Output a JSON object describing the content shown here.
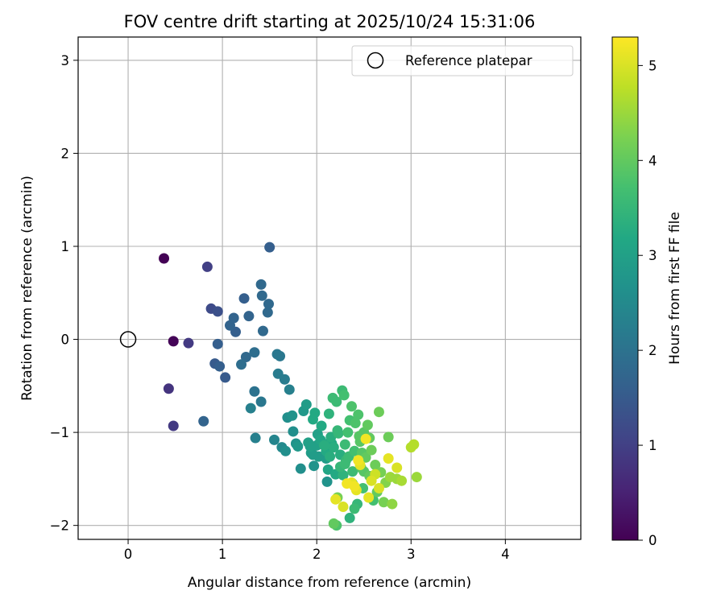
{
  "chart_data": {
    "type": "scatter",
    "title": "FOV centre drift starting at 2025/10/24 15:31:06",
    "xlabel": "Angular distance from reference (arcmin)",
    "ylabel": "Rotation from reference (arcmin)",
    "xlim": [
      -0.53,
      4.8
    ],
    "ylim": [
      -2.15,
      3.25
    ],
    "xticks": [
      0,
      1,
      2,
      3,
      4
    ],
    "yticks": [
      -2,
      -1,
      0,
      1,
      2,
      3
    ],
    "xtick_labels": [
      "0",
      "1",
      "2",
      "3",
      "4"
    ],
    "ytick_labels": [
      "−2",
      "−1",
      "0",
      "1",
      "2",
      "3"
    ],
    "grid": true,
    "legend": {
      "position": "top-right",
      "label": "Reference platepar"
    },
    "reference_point": {
      "x": 0,
      "y": 0
    },
    "colorbar": {
      "label": "Hours from first FF file",
      "range": [
        0,
        5.3
      ],
      "ticks": [
        0,
        1,
        2,
        3,
        4,
        5
      ],
      "tick_labels": [
        "0",
        "1",
        "2",
        "3",
        "4",
        "5"
      ],
      "colormap": "viridis"
    },
    "points": [
      [
        0.38,
        0.87,
        0.02
      ],
      [
        0.48,
        -0.02,
        0.05
      ],
      [
        0.43,
        -0.53,
        0.8
      ],
      [
        0.48,
        -0.93,
        0.9
      ],
      [
        0.64,
        -0.04,
        0.9
      ],
      [
        0.84,
        0.78,
        1.0
      ],
      [
        0.88,
        0.33,
        1.2
      ],
      [
        0.95,
        0.3,
        1.3
      ],
      [
        0.95,
        -0.05,
        1.6
      ],
      [
        0.92,
        -0.26,
        1.5
      ],
      [
        0.97,
        -0.29,
        1.6
      ],
      [
        1.03,
        -0.41,
        1.5
      ],
      [
        1.08,
        0.15,
        1.7
      ],
      [
        1.12,
        0.23,
        1.7
      ],
      [
        1.14,
        0.08,
        1.6
      ],
      [
        1.23,
        0.44,
        1.6
      ],
      [
        1.28,
        0.25,
        1.7
      ],
      [
        1.2,
        -0.27,
        1.9
      ],
      [
        1.25,
        -0.19,
        1.8
      ],
      [
        1.34,
        -0.14,
        1.9
      ],
      [
        1.41,
        0.59,
        1.8
      ],
      [
        1.42,
        0.47,
        1.8
      ],
      [
        1.43,
        0.09,
        1.8
      ],
      [
        1.48,
        0.29,
        1.8
      ],
      [
        1.49,
        0.38,
        1.8
      ],
      [
        1.5,
        0.99,
        1.6
      ],
      [
        1.34,
        -0.56,
        2.0
      ],
      [
        1.3,
        -0.74,
        2.3
      ],
      [
        1.41,
        -0.67,
        2.1
      ],
      [
        0.8,
        -0.88,
        1.7
      ],
      [
        1.35,
        -1.06,
        2.3
      ],
      [
        1.58,
        -0.16,
        2.1
      ],
      [
        1.61,
        -0.18,
        2.1
      ],
      [
        1.59,
        -0.37,
        2.2
      ],
      [
        1.66,
        -0.43,
        2.2
      ],
      [
        1.71,
        -0.54,
        2.3
      ],
      [
        1.55,
        -1.08,
        2.4
      ],
      [
        1.63,
        -1.16,
        2.5
      ],
      [
        1.67,
        -1.2,
        2.6
      ],
      [
        1.69,
        -0.84,
        2.6
      ],
      [
        1.74,
        -0.82,
        2.7
      ],
      [
        1.75,
        -0.99,
        2.6
      ],
      [
        1.78,
        -1.12,
        2.7
      ],
      [
        1.8,
        -1.15,
        2.8
      ],
      [
        1.83,
        -1.39,
        2.6
      ],
      [
        1.86,
        -0.77,
        2.8
      ],
      [
        1.89,
        -0.7,
        2.9
      ],
      [
        1.91,
        -1.11,
        3.0
      ],
      [
        1.94,
        -1.22,
        2.9
      ],
      [
        1.96,
        -0.86,
        3.2
      ],
      [
        1.98,
        -0.79,
        3.2
      ],
      [
        1.97,
        -1.36,
        2.7
      ],
      [
        2.01,
        -1.02,
        3.0
      ],
      [
        2.02,
        -1.26,
        2.9
      ],
      [
        2.05,
        -0.93,
        3.2
      ],
      [
        2.07,
        -1.12,
        3.1
      ],
      [
        2.1,
        -1.28,
        2.9
      ],
      [
        2.11,
        -1.53,
        2.7
      ],
      [
        2.12,
        -1.4,
        3.1
      ],
      [
        2.13,
        -0.8,
        3.4
      ],
      [
        2.15,
        -1.05,
        3.3
      ],
      [
        2.17,
        -0.63,
        3.6
      ],
      [
        2.18,
        -1.16,
        3.3
      ],
      [
        2.2,
        -1.45,
        3.2
      ],
      [
        2.21,
        -0.67,
        3.6
      ],
      [
        2.23,
        -1.01,
        3.5
      ],
      [
        2.25,
        -1.24,
        3.3
      ],
      [
        2.27,
        -0.55,
        3.6
      ],
      [
        2.28,
        -1.46,
        3.4
      ],
      [
        2.3,
        -1.13,
        3.6
      ],
      [
        2.31,
        -1.3,
        3.5
      ],
      [
        2.33,
        -1.0,
        3.7
      ],
      [
        2.35,
        -1.92,
        3.4
      ],
      [
        2.37,
        -0.72,
        3.8
      ],
      [
        2.38,
        -1.55,
        3.6
      ],
      [
        2.4,
        -1.2,
        3.7
      ],
      [
        2.41,
        -0.9,
        3.8
      ],
      [
        2.43,
        -1.77,
        3.5
      ],
      [
        2.44,
        -0.81,
        3.8
      ],
      [
        2.46,
        -1.1,
        3.9
      ],
      [
        2.47,
        -1.38,
        3.8
      ],
      [
        2.49,
        -1.6,
        3.7
      ],
      [
        2.5,
        -1.0,
        3.9
      ],
      [
        2.52,
        -1.27,
        4.0
      ],
      [
        2.54,
        -0.92,
        4.0
      ],
      [
        2.56,
        -1.47,
        4.0
      ],
      [
        2.58,
        -1.19,
        4.1
      ],
      [
        2.6,
        -1.73,
        3.7
      ],
      [
        2.62,
        -1.35,
        4.1
      ],
      [
        2.64,
        -1.64,
        4.0
      ],
      [
        2.66,
        -0.78,
        4.1
      ],
      [
        2.68,
        -1.43,
        4.2
      ],
      [
        2.71,
        -1.75,
        4.2
      ],
      [
        2.73,
        -1.54,
        4.3
      ],
      [
        2.76,
        -1.05,
        4.1
      ],
      [
        2.78,
        -1.48,
        4.5
      ],
      [
        2.8,
        -1.77,
        4.4
      ],
      [
        2.85,
        -1.5,
        4.5
      ],
      [
        2.9,
        -1.52,
        4.6
      ],
      [
        3.0,
        -1.16,
        4.7
      ],
      [
        3.03,
        -1.13,
        4.7
      ],
      [
        3.06,
        -1.48,
        4.5
      ],
      [
        2.18,
        -1.98,
        4.0
      ],
      [
        2.21,
        -2.0,
        3.8
      ],
      [
        2.29,
        -0.6,
        3.7
      ],
      [
        2.35,
        -0.87,
        3.7
      ],
      [
        2.4,
        -1.82,
        3.6
      ],
      [
        2.22,
        -1.7,
        4.2
      ],
      [
        2.2,
        -1.72,
        5.1
      ],
      [
        2.28,
        -1.8,
        5.0
      ],
      [
        2.32,
        -1.55,
        5.2
      ],
      [
        2.37,
        -1.54,
        5.1
      ],
      [
        2.4,
        -1.58,
        5.2
      ],
      [
        2.42,
        -1.62,
        5.1
      ],
      [
        2.44,
        -1.3,
        5.2
      ],
      [
        2.46,
        -1.35,
        5.1
      ],
      [
        2.52,
        -1.07,
        5.2
      ],
      [
        2.55,
        -1.7,
        5.1
      ],
      [
        2.58,
        -1.52,
        5.0
      ],
      [
        2.62,
        -1.45,
        4.9
      ],
      [
        2.66,
        -1.6,
        5.0
      ],
      [
        2.76,
        -1.28,
        5.1
      ],
      [
        2.85,
        -1.38,
        5.0
      ],
      [
        2.1,
        -1.2,
        3.2
      ],
      [
        2.08,
        -1.14,
        3.3
      ],
      [
        2.14,
        -1.26,
        3.3
      ],
      [
        2.25,
        -1.37,
        3.5
      ],
      [
        2.34,
        -1.26,
        3.6
      ],
      [
        2.45,
        -1.04,
        3.9
      ],
      [
        2.5,
        -1.42,
        3.9
      ],
      [
        2.56,
        -1.06,
        4.0
      ],
      [
        2.04,
        -1.08,
        3.1
      ],
      [
        2.0,
        -1.14,
        3.0
      ],
      [
        1.96,
        -1.24,
        2.9
      ],
      [
        1.93,
        -1.15,
        3.0
      ],
      [
        2.16,
        -1.12,
        3.2
      ],
      [
        2.22,
        -0.98,
        3.5
      ],
      [
        2.3,
        -1.34,
        3.6
      ],
      [
        2.38,
        -1.42,
        3.6
      ],
      [
        2.48,
        -1.22,
        3.9
      ]
    ]
  }
}
